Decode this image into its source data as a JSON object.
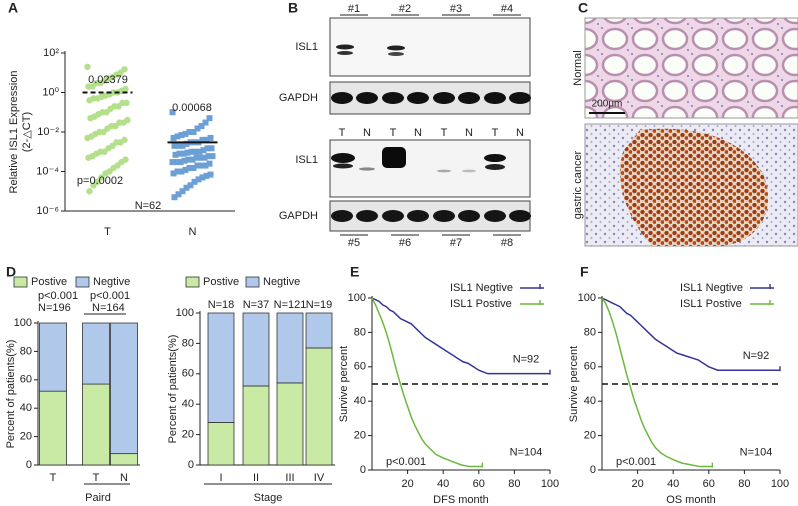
{
  "panel_labels": [
    "A",
    "B",
    "C",
    "D",
    "E",
    "F"
  ],
  "panel_b": {
    "top_groups": [
      "#1",
      "#2",
      "#3",
      "#4"
    ],
    "bottom_groups": [
      "#5",
      "#6",
      "#7",
      "#8"
    ],
    "rows": [
      "ISL1",
      "GAPDH"
    ],
    "lanes": [
      "T",
      "N",
      "T",
      "N",
      "T",
      "N",
      "T",
      "N"
    ]
  },
  "panel_c": {
    "rows": [
      "Normal",
      "gastric cancer"
    ],
    "scale_bar": "200μm"
  },
  "chart_data": [
    {
      "type": "dot-scatter",
      "y_label": [
        "Relative ISL1 Expression",
        "(2-△CT)"
      ],
      "categories": [
        "T",
        "N"
      ],
      "log_scale": true,
      "ylim": [
        1e-06,
        100
      ],
      "yticks": [
        {
          "value": 1e-06,
          "label": "10⁻⁶"
        },
        {
          "value": 0.0001,
          "label": "10⁻⁴"
        },
        {
          "value": 0.01,
          "label": "10⁻²"
        },
        {
          "value": 1,
          "label": "10⁰"
        },
        {
          "value": 100,
          "label": "10²"
        }
      ],
      "series": [
        {
          "color": "#b4df8b",
          "marker": "circle",
          "center_line": 1,
          "line_style": "dashed",
          "values": [
            20,
            15,
            10,
            8,
            6,
            5,
            4,
            3,
            3,
            2,
            2,
            1.5,
            1.2,
            1,
            1,
            0.8,
            0.7,
            0.6,
            0.5,
            0.5,
            0.4,
            0.3,
            0.3,
            0.2,
            0.2,
            0.15,
            0.1,
            0.1,
            0.08,
            0.06,
            0.05,
            0.04,
            0.03,
            0.03,
            0.02,
            0.02,
            0.015,
            0.01,
            0.01,
            0.008,
            0.006,
            0.005,
            0.004,
            0.003,
            0.003,
            0.002,
            0.0015,
            0.001,
            0.001,
            0.0008,
            0.0006,
            0.0005,
            0.0004,
            0.0003,
            0.0002,
            0.00015,
            0.0001,
            8e-05,
            5e-05,
            3e-05,
            2e-05,
            1e-05
          ]
        },
        {
          "color": "#6b9fd6",
          "marker": "square",
          "center_line": 0.003,
          "line_style": "solid",
          "values": [
            0.1,
            0.05,
            0.03,
            0.02,
            0.015,
            0.01,
            0.01,
            0.008,
            0.007,
            0.006,
            0.005,
            0.005,
            0.004,
            0.004,
            0.003,
            0.003,
            0.003,
            0.0025,
            0.002,
            0.002,
            0.002,
            0.0015,
            0.0015,
            0.0012,
            0.001,
            0.001,
            0.001,
            0.0009,
            0.0008,
            0.0008,
            0.0007,
            0.0006,
            0.0006,
            0.0005,
            0.0005,
            0.0005,
            0.0004,
            0.0004,
            0.00035,
            0.0003,
            0.0003,
            0.0003,
            0.00025,
            0.0002,
            0.0002,
            0.0002,
            0.00015,
            0.00015,
            0.00012,
            0.0001,
            0.0001,
            8e-05,
            7e-05,
            6e-05,
            5e-05,
            4e-05,
            3e-05,
            2e-05,
            1.5e-05,
            1e-05,
            7e-06,
            5e-06
          ]
        }
      ],
      "annotations": [
        "0.02379",
        "0.00068",
        "p=0.0002",
        "N=62"
      ]
    },
    {
      "type": "stacked-bar",
      "y_label": "Percent of patients(%)",
      "categories": [
        "T",
        "T",
        "N"
      ],
      "group_label": "Paird",
      "ylim": [
        0,
        100
      ],
      "yticks": [
        0,
        20,
        40,
        60,
        80,
        100
      ],
      "series": [
        {
          "name": "Postive",
          "color": "#c8eaa5",
          "values": [
            52,
            57,
            8
          ]
        },
        {
          "name": "Negtive",
          "color": "#b0c9ea",
          "values": [
            48,
            43,
            92
          ]
        }
      ],
      "annotations": [
        "p<0.001",
        "N=196",
        "p<0.001",
        "N=164"
      ]
    },
    {
      "type": "stacked-bar",
      "y_label": "Percent of patients(%)",
      "categories": [
        "I",
        "II",
        "III",
        "IV"
      ],
      "group_label": "Stage",
      "ylim": [
        0,
        100
      ],
      "yticks": [
        0,
        20,
        40,
        60,
        80,
        100
      ],
      "series": [
        {
          "name": "Postive",
          "color": "#c8eaa5",
          "values": [
            28,
            52,
            54,
            77
          ]
        },
        {
          "name": "Negtive",
          "color": "#b0c9ea",
          "values": [
            72,
            48,
            46,
            23
          ]
        }
      ],
      "bar_labels": [
        "N=18",
        "N=37",
        "N=121",
        "N=19"
      ]
    },
    {
      "type": "survival",
      "x_label": "DFS month",
      "y_label": "Survive percent",
      "xlim": [
        0,
        100
      ],
      "xticks": [
        20,
        40,
        60,
        80,
        100
      ],
      "ylim": [
        0,
        100
      ],
      "yticks": [
        0,
        20,
        40,
        60,
        80,
        100
      ],
      "reference_line": 50,
      "series": [
        {
          "name": "ISL1 Negtive",
          "color": "#34349a",
          "count_label": "N=92",
          "x": [
            0,
            2,
            4,
            6,
            8,
            10,
            12,
            14,
            16,
            18,
            20,
            22,
            24,
            26,
            28,
            30,
            33,
            36,
            39,
            42,
            45,
            48,
            51,
            54,
            57,
            60,
            65,
            70,
            80,
            90,
            100
          ],
          "values": [
            100,
            99,
            98,
            96,
            95,
            93,
            92,
            90,
            88,
            87,
            86,
            85,
            83,
            81,
            79,
            77,
            75,
            73,
            71,
            69,
            67,
            65,
            63,
            62,
            60,
            58,
            56,
            56,
            56,
            56,
            56
          ]
        },
        {
          "name": "ISL1 Postive",
          "color": "#6cb83c",
          "count_label": "N=104",
          "x": [
            0,
            2,
            4,
            6,
            8,
            10,
            12,
            14,
            16,
            18,
            20,
            22,
            24,
            26,
            28,
            30,
            33,
            36,
            40,
            45,
            50,
            55,
            60,
            62
          ],
          "values": [
            100,
            96,
            91,
            86,
            80,
            73,
            65,
            57,
            50,
            43,
            37,
            31,
            26,
            22,
            18,
            15,
            12,
            9,
            7,
            5,
            3,
            2,
            2,
            2
          ]
        }
      ],
      "annotations": [
        "p<0.001"
      ]
    },
    {
      "type": "survival",
      "x_label": "OS month",
      "y_label": "Survive percent",
      "xlim": [
        0,
        100
      ],
      "xticks": [
        20,
        40,
        60,
        80,
        100
      ],
      "ylim": [
        0,
        100
      ],
      "yticks": [
        0,
        20,
        40,
        60,
        80,
        100
      ],
      "reference_line": 50,
      "series": [
        {
          "name": "ISL1 Negtive",
          "color": "#34349a",
          "count_label": "N=92",
          "x": [
            0,
            2,
            4,
            6,
            8,
            10,
            12,
            14,
            16,
            18,
            20,
            22,
            24,
            26,
            28,
            30,
            33,
            36,
            39,
            42,
            45,
            48,
            51,
            54,
            57,
            60,
            65,
            70,
            80,
            90,
            100
          ],
          "values": [
            100,
            99,
            98,
            97,
            96,
            95,
            93,
            91,
            90,
            88,
            86,
            84,
            82,
            80,
            78,
            76,
            74,
            72,
            70,
            68,
            67,
            66,
            65,
            64,
            62,
            60,
            58,
            58,
            58,
            58,
            58
          ]
        },
        {
          "name": "ISL1 Postive",
          "color": "#6cb83c",
          "count_label": "N=104",
          "x": [
            0,
            2,
            4,
            6,
            8,
            10,
            12,
            14,
            16,
            18,
            20,
            22,
            24,
            26,
            28,
            30,
            33,
            36,
            40,
            45,
            50,
            55,
            60,
            62
          ],
          "values": [
            100,
            97,
            92,
            86,
            79,
            71,
            63,
            55,
            48,
            41,
            35,
            29,
            24,
            20,
            16,
            13,
            10,
            8,
            6,
            4,
            3,
            2,
            2,
            2
          ]
        }
      ],
      "annotations": [
        "p<0.001"
      ]
    }
  ]
}
